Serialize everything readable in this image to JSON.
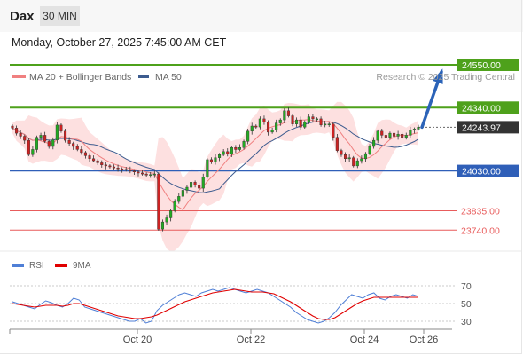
{
  "header": {
    "symbol": "Dax",
    "timeframe": "30 MIN",
    "datetime": "Monday, October 27, 2025 7:45:00 AM CET"
  },
  "legend": {
    "ma20": "MA 20 + Bollinger Bands",
    "ma50": "MA 50",
    "credit": "Research © 2025 Trading Central"
  },
  "colors": {
    "resistance": "#4ea11b",
    "support": "#2f5fb8",
    "current": "#333333",
    "target": "#e85c5c",
    "ma20": "#f08080",
    "ma50": "#3d5c8f",
    "band": "#fde0e0",
    "rsi": "#4f7fd6",
    "rsi_ma": "#e00000",
    "arrow": "#2b63b8",
    "candle_up": "#22aa22",
    "candle_down": "#cc2222"
  },
  "chart_data": [
    {
      "type": "candlestick",
      "title": "Dax",
      "y_range": [
        23650,
        24650
      ],
      "x_tick_labels": [
        "Oct 20",
        "Oct 22",
        "Oct 24",
        "Oct 26"
      ],
      "levels": [
        {
          "label": "24550.00",
          "value": 24550.0,
          "kind": "resistance"
        },
        {
          "label": "24340.00",
          "value": 24340.0,
          "kind": "resistance"
        },
        {
          "label": "24243.97",
          "value": 24243.97,
          "kind": "current"
        },
        {
          "label": "24030.00",
          "value": 24030.0,
          "kind": "support"
        },
        {
          "label": "23835.00",
          "value": 23835.0,
          "kind": "target"
        },
        {
          "label": "23740.00",
          "value": 23740.0,
          "kind": "target"
        }
      ],
      "series": [
        {
          "name": "MA 20 + Bollinger Bands"
        },
        {
          "name": "MA 50"
        }
      ],
      "close_path": [
        24240,
        24215,
        24200,
        24180,
        24110,
        24135,
        24195,
        24205,
        24175,
        24150,
        24182,
        24255,
        24225,
        24180,
        24165,
        24150,
        24135,
        24120,
        24105,
        24090,
        24080,
        24070,
        24060,
        24055,
        24050,
        24045,
        24040,
        24038,
        24035,
        24030,
        24025,
        24020,
        24015,
        24010,
        24012,
        24015,
        23745,
        23780,
        23800,
        23835,
        23880,
        23905,
        23935,
        23950,
        23975,
        23960,
        23945,
        24000,
        24085,
        24075,
        24095,
        24110,
        24125,
        24112,
        24145,
        24135,
        24145,
        24175,
        24225,
        24250,
        24245,
        24285,
        24270,
        24220,
        24230,
        24265,
        24280,
        24325,
        24300,
        24260,
        24280,
        24245,
        24270,
        24295,
        24285,
        24285,
        24255,
        24260,
        24260,
        24195,
        24130,
        24110,
        24090,
        24095,
        24055,
        24080,
        24090,
        24115,
        24150,
        24180,
        24225,
        24205,
        24195,
        24215,
        24200,
        24210,
        24195,
        24205,
        24230,
        24235,
        24243.97
      ],
      "arrow_target": 24550.0
    },
    {
      "type": "line",
      "title": "RSI",
      "y_range": [
        20,
        80
      ],
      "y_tick_labels": [
        "70",
        "50",
        "30"
      ],
      "y_ticks": [
        70,
        50,
        30
      ],
      "series": [
        {
          "name": "RSI",
          "values": [
            52,
            50,
            48,
            46,
            44,
            49,
            53,
            51,
            48,
            46,
            50,
            56,
            54,
            46,
            44,
            42,
            40,
            38,
            36,
            34,
            32,
            30,
            30,
            33,
            28,
            30,
            42,
            48,
            52,
            56,
            60,
            62,
            60,
            58,
            62,
            64,
            66,
            64,
            66,
            68,
            66,
            64,
            62,
            64,
            66,
            64,
            62,
            58,
            54,
            50,
            46,
            40,
            36,
            32,
            30,
            28,
            30,
            34,
            40,
            48,
            54,
            60,
            58,
            56,
            60,
            62,
            56,
            54,
            58,
            60,
            58,
            56,
            60,
            58
          ]
        },
        {
          "name": "9MA",
          "values": [
            50,
            49,
            48,
            47,
            46,
            47,
            48,
            48,
            48,
            47,
            48,
            50,
            50,
            48,
            46,
            44,
            42,
            40,
            38,
            36,
            35,
            34,
            33,
            33,
            34,
            35,
            37,
            40,
            43,
            46,
            49,
            52,
            54,
            56,
            58,
            60,
            62,
            63,
            64,
            65,
            66,
            65,
            64,
            63,
            63,
            63,
            62,
            61,
            58,
            55,
            52,
            48,
            44,
            40,
            36,
            33,
            32,
            32,
            34,
            38,
            42,
            46,
            50,
            53,
            55,
            57,
            57,
            57,
            57,
            57,
            57,
            57,
            57,
            57
          ]
        }
      ]
    }
  ]
}
